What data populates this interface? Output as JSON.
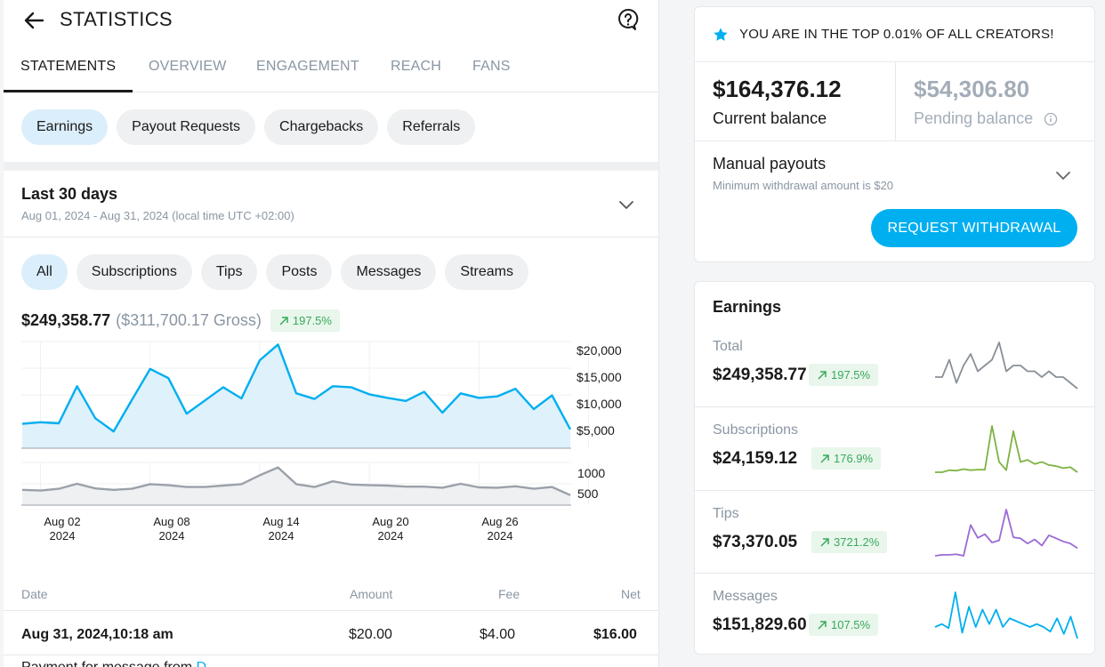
{
  "header": {
    "title": "STATISTICS"
  },
  "tabs": [
    "STATEMENTS",
    "OVERVIEW",
    "ENGAGEMENT",
    "REACH",
    "FANS"
  ],
  "statement_types": [
    "Earnings",
    "Payout Requests",
    "Chargebacks",
    "Referrals"
  ],
  "period": {
    "label": "Last 30 days",
    "range": "Aug 01, 2024 - Aug 31, 2024 (local time UTC +02:00)"
  },
  "categories": [
    "All",
    "Subscriptions",
    "Tips",
    "Posts",
    "Messages",
    "Streams"
  ],
  "totals": {
    "net": "$249,358.77",
    "gross": "($311,700.17 Gross)",
    "change": "197.5%"
  },
  "chart_data": [
    {
      "type": "area",
      "title": "Daily earnings",
      "x": [
        1,
        2,
        3,
        4,
        5,
        6,
        7,
        8,
        9,
        10,
        11,
        12,
        13,
        14,
        15,
        16,
        17,
        18,
        19,
        20,
        21,
        22,
        23,
        24,
        25,
        26,
        27,
        28,
        29,
        30,
        31
      ],
      "values": [
        4800,
        5100,
        4900,
        12200,
        5900,
        3300,
        9500,
        15600,
        13800,
        6800,
        9400,
        12000,
        9800,
        17300,
        20400,
        10800,
        9700,
        12200,
        12000,
        10600,
        9900,
        9300,
        11100,
        7000,
        10800,
        9900,
        10200,
        11700,
        7700,
        10400,
        3700
      ],
      "ylim": [
        0,
        21000
      ],
      "yticks": [
        "$20,000",
        "$15,000",
        "$10,000",
        "$5,000"
      ],
      "xticks": [
        {
          "line1": "Aug 02",
          "line2": "2024"
        },
        {
          "line1": "Aug 08",
          "line2": "2024"
        },
        {
          "line1": "Aug 14",
          "line2": "2024"
        },
        {
          "line1": "Aug 20",
          "line2": "2024"
        },
        {
          "line1": "Aug 26",
          "line2": "2024"
        }
      ]
    },
    {
      "type": "area",
      "title": "Daily count",
      "x": [
        1,
        2,
        3,
        4,
        5,
        6,
        7,
        8,
        9,
        10,
        11,
        12,
        13,
        14,
        15,
        16,
        17,
        18,
        19,
        20,
        21,
        22,
        23,
        24,
        25,
        26,
        27,
        28,
        29,
        30,
        31
      ],
      "values": [
        430,
        410,
        460,
        600,
        470,
        430,
        460,
        590,
        560,
        510,
        510,
        550,
        590,
        840,
        1060,
        590,
        510,
        670,
        580,
        560,
        550,
        520,
        520,
        490,
        600,
        500,
        490,
        530,
        460,
        510,
        280
      ],
      "ylim": [
        0,
        1200
      ],
      "yticks": [
        "1000",
        "500"
      ]
    }
  ],
  "table": {
    "headers": [
      "Date",
      "Amount",
      "Fee",
      "Net"
    ],
    "rows": [
      {
        "date": "Aug 31, 2024,10:18 am",
        "amount": "$20.00",
        "fee": "$4.00",
        "net": "$16.00"
      }
    ],
    "partial_row": {
      "text": "Payment for message from",
      "link": "D..."
    }
  },
  "balance": {
    "banner": "YOU ARE IN THE TOP 0.01% OF ALL CREATORS!",
    "current_amount": "$164,376.12",
    "current_label": "Current balance",
    "pending_amount": "$54,306.80",
    "pending_label": "Pending balance",
    "manual_title": "Manual payouts",
    "manual_sub": "Minimum withdrawal amount is $20",
    "withdraw_label": "REQUEST WITHDRAWAL"
  },
  "earnings": {
    "title": "Earnings",
    "items": [
      {
        "label": "Total",
        "value": "$249,358.77",
        "change": "197.5%",
        "color": "#8a9098",
        "spark": [
          2,
          2,
          5,
          1,
          4,
          6,
          3,
          4,
          5,
          8,
          3,
          4,
          4,
          3,
          3,
          2,
          3,
          2,
          2,
          1,
          0
        ]
      },
      {
        "label": "Subscriptions",
        "value": "$24,159.12",
        "change": "176.9%",
        "color": "#7cb342",
        "spark": [
          1,
          1,
          1.4,
          1.3,
          1.6,
          1.4,
          1.5,
          1.5,
          10,
          3,
          1.4,
          9,
          3,
          3.4,
          2.6,
          3,
          2.4,
          2.2,
          1.8,
          2,
          1
        ]
      },
      {
        "label": "Tips",
        "value": "$73,370.05",
        "change": "3721.2%",
        "color": "#9c6ad6",
        "spark": [
          0,
          0.2,
          0.2,
          0.3,
          0,
          6,
          3.5,
          4.2,
          2.6,
          3,
          9,
          3.6,
          3.4,
          2.4,
          3.2,
          2,
          4,
          3.4,
          2.8,
          2.4,
          1.5
        ]
      },
      {
        "label": "Messages",
        "value": "$151,829.60",
        "change": "107.5%",
        "color": "#00aff0",
        "spark": [
          2,
          2.5,
          1.8,
          8,
          1,
          5.5,
          2,
          5,
          2.5,
          5,
          2,
          3.5,
          3,
          2.5,
          2,
          2.5,
          2,
          1.2,
          3.5,
          0.8,
          3.8,
          0
        ]
      }
    ]
  },
  "colors": {
    "accent": "#00aff0",
    "positive": "#3aa95b",
    "area_fill": "#dff1fb",
    "line_gray": "#9aa1a9"
  }
}
